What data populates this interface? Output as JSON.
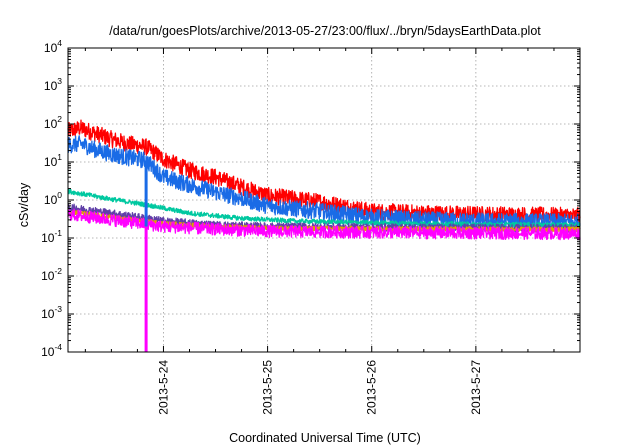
{
  "chart_data": {
    "type": "line",
    "title": "/data/run/goesPlots/archive/2013-05-27/23:00/flux/../bryn/5daysEarthData.plot",
    "xlabel": "Coordinated Universal Time (UTC)",
    "ylabel": "cSv/day",
    "y_scale": "log",
    "ylim": [
      0.0001,
      10000
    ],
    "xlim": [
      "2013-05-23 02:00",
      "2013-05-28 00:00"
    ],
    "x_ticks": [
      "2013-5-24",
      "2013-5-25",
      "2013-5-26",
      "2013-5-27"
    ],
    "y_ticks": [
      {
        "value": 0.0001,
        "base": "10",
        "exp": "-4"
      },
      {
        "value": 0.001,
        "base": "10",
        "exp": "-3"
      },
      {
        "value": 0.01,
        "base": "10",
        "exp": "-2"
      },
      {
        "value": 0.1,
        "base": "10",
        "exp": "-1"
      },
      {
        "value": 1,
        "base": "10",
        "exp": "0"
      },
      {
        "value": 10,
        "base": "10",
        "exp": "1"
      },
      {
        "value": 100,
        "base": "10",
        "exp": "2"
      },
      {
        "value": 1000,
        "base": "10",
        "exp": "3"
      },
      {
        "value": 10000,
        "base": "10",
        "exp": "4"
      }
    ],
    "grid": true,
    "legend": "none",
    "series": [
      {
        "color": "#ff0000",
        "noise": 0.22,
        "points": [
          [
            "2013-05-23 02:00",
            65
          ],
          [
            "2013-05-23 05:00",
            78
          ],
          [
            "2013-05-23 08:00",
            58
          ],
          [
            "2013-05-23 12:00",
            40
          ],
          [
            "2013-05-23 16:00",
            30
          ],
          [
            "2013-05-23 20:00",
            25
          ],
          [
            "2013-05-24 00:00",
            12
          ],
          [
            "2013-05-24 06:00",
            6
          ],
          [
            "2013-05-24 12:00",
            4
          ],
          [
            "2013-05-24 18:00",
            2.2
          ],
          [
            "2013-05-25 00:00",
            1.3
          ],
          [
            "2013-05-25 12:00",
            0.9
          ],
          [
            "2013-05-26 00:00",
            0.5
          ],
          [
            "2013-05-26 12:00",
            0.45
          ],
          [
            "2013-05-27 00:00",
            0.42
          ],
          [
            "2013-05-27 12:00",
            0.4
          ],
          [
            "2013-05-28 00:00",
            0.38
          ]
        ]
      },
      {
        "color": "#1a6be6",
        "noise": 0.22,
        "points": [
          [
            "2013-05-23 02:00",
            28
          ],
          [
            "2013-05-23 05:00",
            30
          ],
          [
            "2013-05-23 08:00",
            22
          ],
          [
            "2013-05-23 12:00",
            16
          ],
          [
            "2013-05-23 16:00",
            13
          ],
          [
            "2013-05-23 20:00",
            11
          ],
          [
            "2013-05-24 00:00",
            4
          ],
          [
            "2013-05-24 06:00",
            2.5
          ],
          [
            "2013-05-24 12:00",
            1.6
          ],
          [
            "2013-05-24 18:00",
            1.1
          ],
          [
            "2013-05-25 00:00",
            0.7
          ],
          [
            "2013-05-25 12:00",
            0.5
          ],
          [
            "2013-05-26 00:00",
            0.35
          ],
          [
            "2013-05-26 12:00",
            0.3
          ],
          [
            "2013-05-27 00:00",
            0.28
          ],
          [
            "2013-05-27 12:00",
            0.27
          ],
          [
            "2013-05-28 00:00",
            0.26
          ]
        ]
      },
      {
        "color": "#00c8a0",
        "noise": 0.06,
        "points": [
          [
            "2013-05-23 02:00",
            1.7
          ],
          [
            "2013-05-23 12:00",
            1.05
          ],
          [
            "2013-05-23 20:00",
            0.75
          ],
          [
            "2013-05-24 06:00",
            0.45
          ],
          [
            "2013-05-24 18:00",
            0.33
          ],
          [
            "2013-05-25 06:00",
            0.28
          ],
          [
            "2013-05-26 00:00",
            0.25
          ],
          [
            "2013-05-27 00:00",
            0.23
          ],
          [
            "2013-05-28 00:00",
            0.22
          ]
        ]
      },
      {
        "color": "#6040a8",
        "noise": 0.1,
        "points": [
          [
            "2013-05-23 02:00",
            0.65
          ],
          [
            "2013-05-23 12:00",
            0.45
          ],
          [
            "2013-05-24 00:00",
            0.28
          ],
          [
            "2013-05-24 12:00",
            0.22
          ],
          [
            "2013-05-25 00:00",
            0.2
          ],
          [
            "2013-05-26 00:00",
            0.19
          ],
          [
            "2013-05-28 00:00",
            0.18
          ]
        ]
      },
      {
        "color": "#e0a000",
        "noise": 0.06,
        "points": [
          [
            "2013-05-23 02:00",
            0.5
          ],
          [
            "2013-05-23 12:00",
            0.35
          ],
          [
            "2013-05-24 00:00",
            0.24
          ],
          [
            "2013-05-24 12:00",
            0.2
          ],
          [
            "2013-05-25 00:00",
            0.18
          ],
          [
            "2013-05-28 00:00",
            0.17
          ]
        ]
      },
      {
        "color": "#ff00ff",
        "noise": 0.16,
        "points": [
          [
            "2013-05-23 02:00",
            0.42
          ],
          [
            "2013-05-23 12:00",
            0.3
          ],
          [
            "2013-05-24 00:00",
            0.2
          ],
          [
            "2013-05-24 12:00",
            0.17
          ],
          [
            "2013-05-25 00:00",
            0.15
          ],
          [
            "2013-05-26 00:00",
            0.14
          ],
          [
            "2013-05-28 00:00",
            0.13
          ]
        ]
      }
    ],
    "vertical_drops": [
      {
        "color": "#ff00ff",
        "x": "2013-05-23 20:00",
        "from": 0.2,
        "to": 0.0001
      },
      {
        "color": "#1a6be6",
        "x": "2013-05-23 20:00",
        "from": 11,
        "to": 0.2
      }
    ]
  }
}
